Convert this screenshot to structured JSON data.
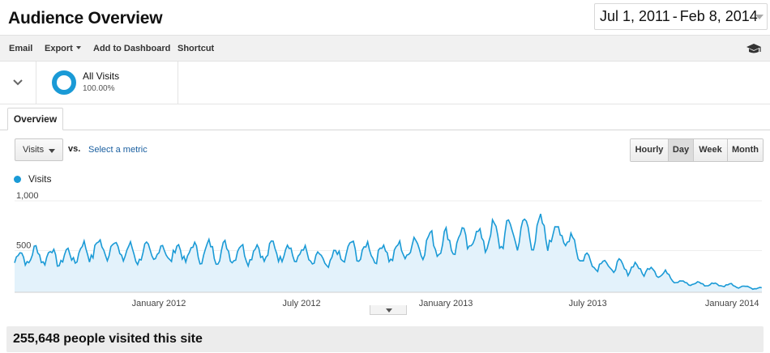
{
  "header": {
    "title": "Audience Overview",
    "date_start": "Jul 1, 2011",
    "date_separator": "-",
    "date_end": "Feb 8, 2014"
  },
  "toolbar": {
    "email": "Email",
    "export": "Export",
    "add_to_dashboard": "Add to Dashboard",
    "shortcut": "Shortcut",
    "help_icon": "graduation-cap-icon"
  },
  "segment": {
    "name": "All Visits",
    "percent": "100.00%",
    "color": "#1a9ad6"
  },
  "tabs": [
    {
      "label": "Overview",
      "active": true
    }
  ],
  "metric_controls": {
    "primary_metric": "Visits",
    "vs_label": "vs.",
    "compare_link": "Select a metric"
  },
  "granularity": {
    "options": [
      "Hourly",
      "Day",
      "Week",
      "Month"
    ],
    "selected": "Day"
  },
  "chart_data": {
    "type": "area",
    "title": "",
    "series": [
      {
        "name": "Visits",
        "color": "#1a9ad6",
        "x": [
          "2011-07-01",
          "2011-08-01",
          "2011-09-01",
          "2011-10-01",
          "2011-11-01",
          "2011-12-01",
          "2012-01-01",
          "2012-02-01",
          "2012-03-01",
          "2012-04-01",
          "2012-05-01",
          "2012-06-01",
          "2012-07-01",
          "2012-08-01",
          "2012-09-01",
          "2012-10-01",
          "2012-11-01",
          "2012-12-01",
          "2013-01-01",
          "2013-02-01",
          "2013-03-01",
          "2013-04-01",
          "2013-05-01",
          "2013-06-01",
          "2013-07-01",
          "2013-08-01",
          "2013-09-01",
          "2013-10-01",
          "2013-11-01",
          "2013-12-01",
          "2014-01-01",
          "2014-02-01"
        ],
        "values": [
          330,
          380,
          340,
          420,
          450,
          380,
          400,
          390,
          410,
          400,
          390,
          420,
          380,
          300,
          420,
          400,
          400,
          480,
          500,
          530,
          560,
          600,
          600,
          580,
          310,
          260,
          240,
          200,
          90,
          80,
          70,
          40
        ]
      }
    ],
    "x_ticks": [
      "January 2012",
      "July 2012",
      "January 2013",
      "July 2013",
      "January 2014"
    ],
    "y_ticks": [
      "1,000",
      "500"
    ],
    "ylim": [
      0,
      1000
    ],
    "grid": true,
    "legend_position": "top-left"
  },
  "summary": {
    "text": "255,648 people visited this site"
  }
}
